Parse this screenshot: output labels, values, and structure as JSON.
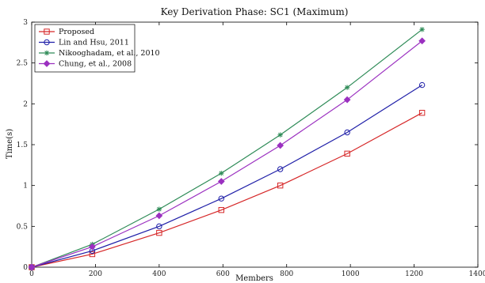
{
  "chart_data": {
    "type": "line",
    "title": "Key Derivation Phase: SC1 (Maximum)",
    "xlabel": "Members",
    "ylabel": "Time(s)",
    "xlim": [
      0,
      1400
    ],
    "ylim": [
      0,
      3
    ],
    "xticks": [
      "0",
      "200",
      "400",
      "600",
      "800",
      "1000",
      "1200",
      "1400"
    ],
    "yticks": [
      "0",
      "0.5",
      "1",
      "1.5",
      "2",
      "2.5",
      "3"
    ],
    "grid": false,
    "legend_position": "top-left",
    "x": [
      0,
      190,
      400,
      595,
      780,
      990,
      1225
    ],
    "series": [
      {
        "name": "Proposed",
        "marker": "square",
        "color": "#d62728",
        "values": [
          0,
          0.16,
          0.42,
          0.7,
          1.0,
          1.39,
          1.89
        ]
      },
      {
        "name": "Lin and Hsu, 2011",
        "marker": "circle",
        "color": "#1f1fa8",
        "values": [
          0,
          0.2,
          0.5,
          0.84,
          1.2,
          1.65,
          2.23
        ]
      },
      {
        "name": "Nikooghadam, et al., 2010",
        "marker": "star",
        "color": "#2e8b57",
        "values": [
          0,
          0.28,
          0.71,
          1.15,
          1.62,
          2.2,
          2.91
        ]
      },
      {
        "name": "Chung, et al., 2008",
        "marker": "diamond",
        "color": "#9b30c0",
        "values": [
          0,
          0.25,
          0.63,
          1.05,
          1.49,
          2.05,
          2.77
        ]
      }
    ]
  }
}
